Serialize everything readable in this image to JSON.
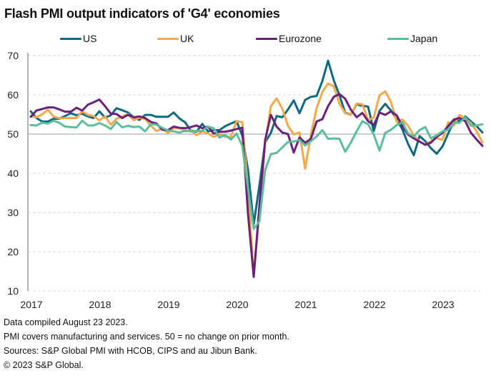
{
  "chart_data": {
    "type": "line",
    "title": "Flash PMI output indicators of 'G4' economies",
    "xlabel": "",
    "ylabel": "",
    "ylim": [
      10,
      70
    ],
    "yticks": [
      10,
      20,
      30,
      40,
      50,
      60,
      70
    ],
    "xtick_labels": [
      "2017",
      "2018",
      "2019",
      "2020",
      "2021",
      "2022",
      "2023"
    ],
    "x_start": "2017-01",
    "x_end": "2023-08",
    "frequency": "monthly",
    "grid": true,
    "reference_line": 50,
    "legend_position": "top",
    "series": [
      {
        "name": "US",
        "color": "#0e6a82",
        "values": [
          55.8,
          54.1,
          53.2,
          53.2,
          53.9,
          53.9,
          54.6,
          55.3,
          54.8,
          55.2,
          54.5,
          54.1,
          55.8,
          54.2,
          54.8,
          56.6,
          56.1,
          55.5,
          54.3,
          53.6,
          54.9,
          54.9,
          54.4,
          54.4,
          54.4,
          55.5,
          54.0,
          53.0,
          50.9,
          50.6,
          52.6,
          50.7,
          51.0,
          51.0,
          52.0,
          52.7,
          53.3,
          49.6,
          40.9,
          27.0,
          37.0,
          47.9,
          50.3,
          54.6,
          54.3,
          56.3,
          58.6,
          55.3,
          58.7,
          59.5,
          59.7,
          63.5,
          68.7,
          63.7,
          59.9,
          55.4,
          55.0,
          57.6,
          57.2,
          57.0,
          50.8,
          55.9,
          57.7,
          56.0,
          53.8,
          51.2,
          47.5,
          44.6,
          49.5,
          48.2,
          46.4,
          45.0,
          46.8,
          50.1,
          53.3,
          53.4,
          54.5,
          53.2,
          52.0,
          50.4
        ]
      },
      {
        "name": "UK",
        "color": "#f5a84a",
        "values": [
          54.5,
          54.3,
          55.0,
          56.2,
          54.5,
          54.0,
          54.1,
          54.1,
          54.1,
          55.8,
          54.9,
          54.6,
          53.5,
          54.5,
          52.4,
          53.9,
          54.5,
          55.1,
          53.5,
          54.2,
          53.9,
          52.1,
          50.8,
          51.4,
          50.3,
          51.5,
          51.5,
          50.9,
          50.9,
          49.7,
          50.7,
          50.2,
          49.3,
          50.0,
          49.3,
          49.3,
          53.3,
          53.0,
          36.0,
          13.8,
          30.0,
          47.7,
          57.1,
          59.1,
          56.5,
          52.1,
          49.9,
          50.4,
          41.2,
          49.8,
          56.6,
          60.7,
          62.9,
          62.2,
          57.7,
          55.3,
          54.9,
          57.8,
          57.6,
          53.6,
          54.2,
          59.9,
          60.9,
          58.2,
          53.1,
          53.7,
          52.1,
          49.6,
          48.1,
          47.2,
          48.2,
          49.0,
          48.5,
          53.0,
          52.2,
          54.9,
          54.0,
          52.8,
          50.7,
          47.9
        ]
      },
      {
        "name": "Eurozone",
        "color": "#6c2079",
        "values": [
          54.4,
          56.0,
          56.4,
          56.8,
          56.8,
          56.3,
          55.7,
          55.7,
          56.7,
          56.0,
          57.5,
          58.1,
          58.8,
          57.1,
          55.2,
          55.1,
          54.1,
          54.9,
          54.3,
          54.5,
          54.1,
          53.1,
          52.7,
          51.1,
          51.0,
          51.9,
          51.6,
          51.5,
          51.8,
          52.2,
          51.5,
          51.9,
          50.1,
          50.6,
          50.6,
          50.9,
          51.3,
          51.6,
          29.7,
          13.6,
          31.9,
          48.5,
          54.9,
          51.9,
          50.4,
          50.0,
          45.3,
          49.1,
          47.8,
          48.8,
          53.2,
          53.8,
          57.1,
          59.5,
          60.2,
          59.0,
          56.2,
          54.3,
          55.4,
          53.3,
          52.3,
          55.5,
          54.9,
          55.8,
          54.8,
          52.0,
          49.9,
          48.9,
          48.1,
          47.3,
          47.8,
          49.3,
          50.3,
          52.0,
          53.7,
          54.1,
          53.3,
          50.3,
          48.6,
          47.0
        ]
      },
      {
        "name": "Japan",
        "color": "#5bbd9c",
        "values": [
          52.3,
          52.2,
          52.9,
          52.7,
          53.4,
          52.9,
          51.9,
          51.8,
          51.7,
          53.4,
          52.2,
          52.2,
          52.8,
          52.2,
          51.3,
          53.1,
          51.7,
          52.1,
          51.8,
          51.9,
          50.7,
          52.5,
          52.4,
          51.6,
          50.9,
          50.7,
          50.4,
          50.8,
          50.7,
          50.8,
          50.8,
          51.9,
          51.5,
          49.1,
          49.8,
          48.6,
          50.1,
          47.0,
          36.2,
          25.8,
          27.8,
          40.8,
          44.9,
          45.2,
          46.6,
          48.0,
          48.1,
          48.5,
          47.1,
          48.2,
          49.4,
          51.0,
          48.8,
          48.9,
          48.8,
          45.5,
          47.9,
          50.7,
          53.3,
          52.5,
          49.9,
          45.8,
          50.3,
          51.1,
          52.3,
          53.0,
          50.2,
          49.4,
          51.0,
          51.8,
          48.9,
          49.7,
          50.7,
          51.1,
          52.9,
          52.9,
          54.3,
          52.1,
          52.2,
          52.5
        ]
      }
    ]
  },
  "notes": [
    "Data compiled August 23 2023.",
    "PMI covers manufacturing and services. 50 = no change on prior month.",
    "Sources: S&P Global PMI with HCOB, CIPS and au Jibun Bank.",
    "© 2023 S&P Global."
  ]
}
